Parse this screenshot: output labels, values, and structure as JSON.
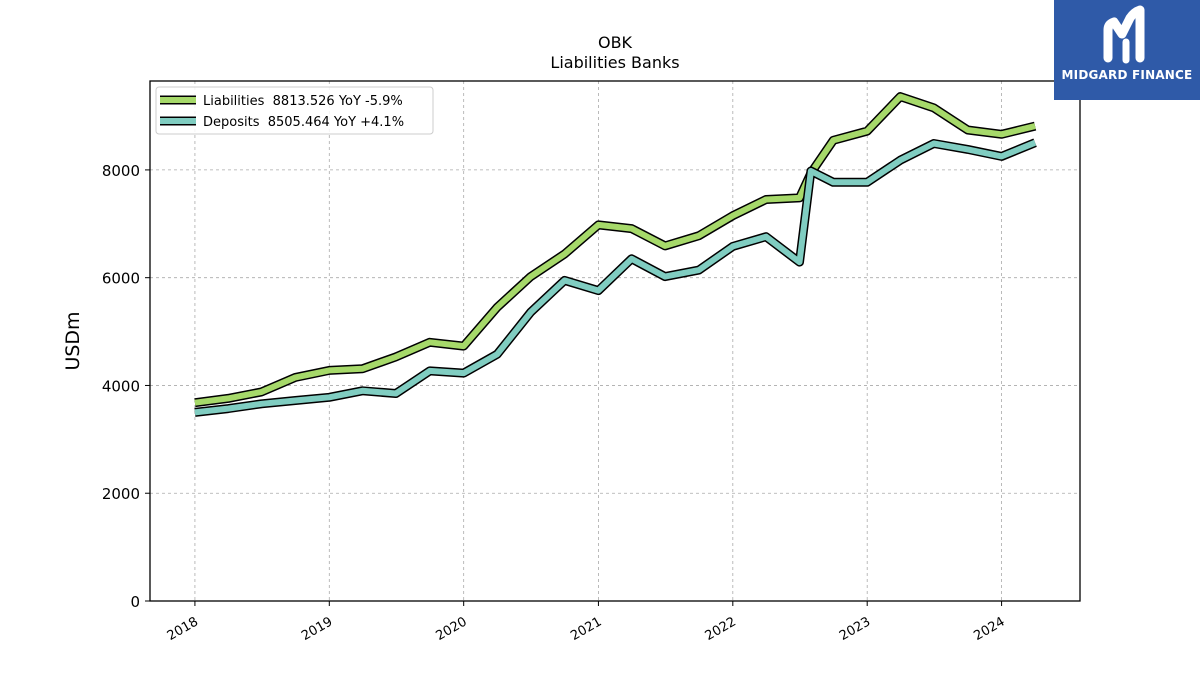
{
  "brand": {
    "name": "MIDGARD FINANCE",
    "bg_color": "#2f5aa8",
    "icon": "m-monogram-icon"
  },
  "chart_data": {
    "type": "line",
    "title": "OBK",
    "subtitle": "Liabilities Banks",
    "xlabel": "",
    "ylabel": "USDm",
    "ylim": [
      0,
      9650
    ],
    "xlim": [
      "2017-09-01",
      "2024-08-01"
    ],
    "yticks": [
      0,
      2000,
      4000,
      6000,
      8000
    ],
    "xticks": [
      "2018",
      "2019",
      "2020",
      "2021",
      "2022",
      "2023",
      "2024"
    ],
    "grid": true,
    "legend_position": "top-left",
    "x": [
      "2018-01-01",
      "2018-04-01",
      "2018-07-01",
      "2018-10-01",
      "2019-01-01",
      "2019-04-01",
      "2019-07-01",
      "2019-10-01",
      "2020-01-01",
      "2020-04-01",
      "2020-07-01",
      "2020-10-01",
      "2021-01-01",
      "2021-04-01",
      "2021-07-01",
      "2021-10-01",
      "2022-01-01",
      "2022-04-01",
      "2022-07-01",
      "2022-08-01",
      "2022-10-01",
      "2023-01-01",
      "2023-04-01",
      "2023-07-01",
      "2023-10-01",
      "2024-01-01",
      "2024-04-01"
    ],
    "series": [
      {
        "name": "Liabilities",
        "legend_label": "Liabilities  8813.526 YoY -5.9%",
        "color": "#a6d96a",
        "values": [
          3680,
          3760,
          3880,
          4150,
          4280,
          4310,
          4530,
          4800,
          4730,
          5450,
          6020,
          6440,
          6980,
          6910,
          6590,
          6780,
          7150,
          7450,
          7480,
          7940,
          8550,
          8720,
          9360,
          9150,
          8740,
          8660,
          8813.526
        ]
      },
      {
        "name": "Deposits",
        "legend_label": "Deposits  8505.464 YoY +4.1%",
        "color": "#80cdc1",
        "values": [
          3500,
          3570,
          3660,
          3720,
          3780,
          3900,
          3850,
          4270,
          4230,
          4580,
          5360,
          5950,
          5760,
          6350,
          6020,
          6140,
          6580,
          6760,
          6290,
          7980,
          7770,
          7770,
          8180,
          8490,
          8380,
          8250,
          8505.464
        ]
      }
    ]
  }
}
